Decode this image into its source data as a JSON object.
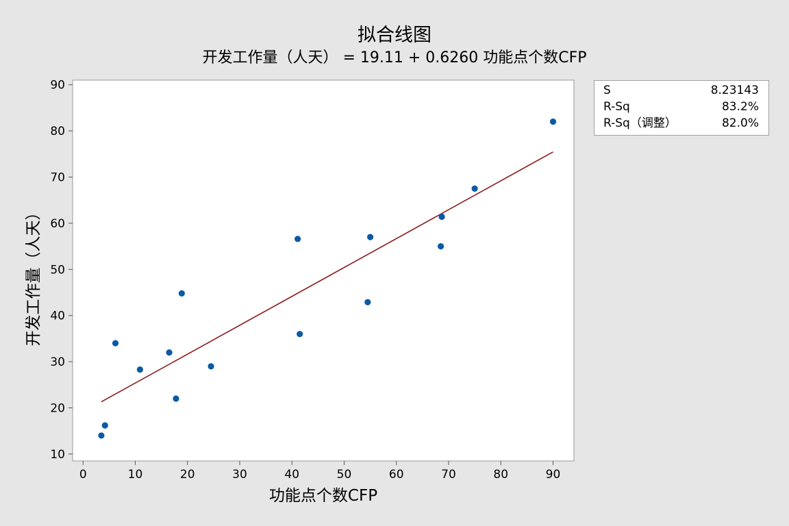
{
  "chart_data": {
    "type": "scatter",
    "title": "拟合线图",
    "subtitle": "开发工作量（人天） = 19.11 + 0.6260 功能点个数CFP",
    "xlabel": "功能点个数CFP",
    "ylabel": "开发工作量（人天）",
    "xlim": [
      -2,
      94
    ],
    "ylim": [
      8.5,
      91
    ],
    "x_ticks": [
      "0",
      "10",
      "20",
      "30",
      "40",
      "50",
      "60",
      "70",
      "80",
      "90"
    ],
    "y_ticks": [
      "10",
      "20",
      "30",
      "40",
      "50",
      "60",
      "70",
      "80",
      "90"
    ],
    "grid": false,
    "series": [
      {
        "values": [
          {
            "x": 3.5,
            "y": 14
          },
          {
            "x": 4.2,
            "y": 16.2
          },
          {
            "x": 6.2,
            "y": 34
          },
          {
            "x": 10.9,
            "y": 28.3
          },
          {
            "x": 16.5,
            "y": 32
          },
          {
            "x": 17.8,
            "y": 22
          },
          {
            "x": 18.9,
            "y": 44.8
          },
          {
            "x": 24.5,
            "y": 29
          },
          {
            "x": 41.1,
            "y": 56.6
          },
          {
            "x": 41.5,
            "y": 36
          },
          {
            "x": 54.5,
            "y": 42.9
          },
          {
            "x": 55.0,
            "y": 57
          },
          {
            "x": 68.5,
            "y": 55
          },
          {
            "x": 68.7,
            "y": 61.4
          },
          {
            "x": 75.0,
            "y": 67.5
          },
          {
            "x": 90.0,
            "y": 82
          }
        ]
      }
    ],
    "fit_line": {
      "intercept": 19.11,
      "slope": 0.626,
      "x_range": [
        3.5,
        90
      ]
    },
    "colors": {
      "points": "#0b5aa5",
      "fit": "#8b1a1a",
      "plot_bg": "#ffffff",
      "page_bg": "#e6e6e6"
    }
  },
  "stats": [
    {
      "key": "S",
      "value": "8.23143"
    },
    {
      "key": "R-Sq",
      "value": "83.2%"
    },
    {
      "key": "R-Sq（调整）",
      "value": "82.0%"
    }
  ]
}
